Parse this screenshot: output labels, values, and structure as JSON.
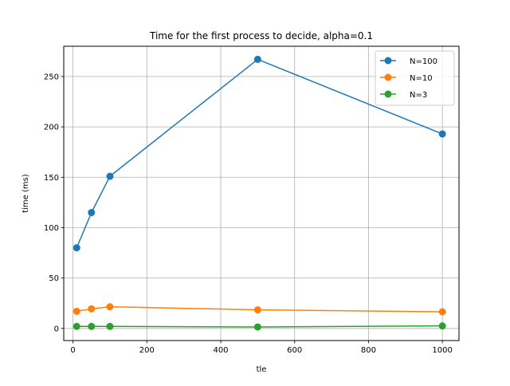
{
  "chart_data": {
    "type": "line",
    "title": "Time for the first process to decide, alpha=0.1",
    "xlabel": "tle",
    "ylabel": "time (ms)",
    "xlim": [
      -25,
      1045
    ],
    "ylim": [
      -12,
      280
    ],
    "xticks": [
      0,
      200,
      400,
      600,
      800,
      1000
    ],
    "yticks": [
      0,
      50,
      100,
      150,
      200,
      250
    ],
    "grid": true,
    "legend_position": "top-right",
    "x": [
      10,
      50,
      100,
      500,
      1000
    ],
    "series": [
      {
        "name": "N=100",
        "color": "#1f77b4",
        "values": [
          80,
          115,
          151,
          267,
          193
        ]
      },
      {
        "name": "N=10",
        "color": "#ff7f0e",
        "values": [
          17,
          19.5,
          21.5,
          18.5,
          16.5
        ]
      },
      {
        "name": "N=3",
        "color": "#2ca02c",
        "values": [
          2,
          2,
          2,
          1.5,
          2.5
        ]
      }
    ]
  }
}
